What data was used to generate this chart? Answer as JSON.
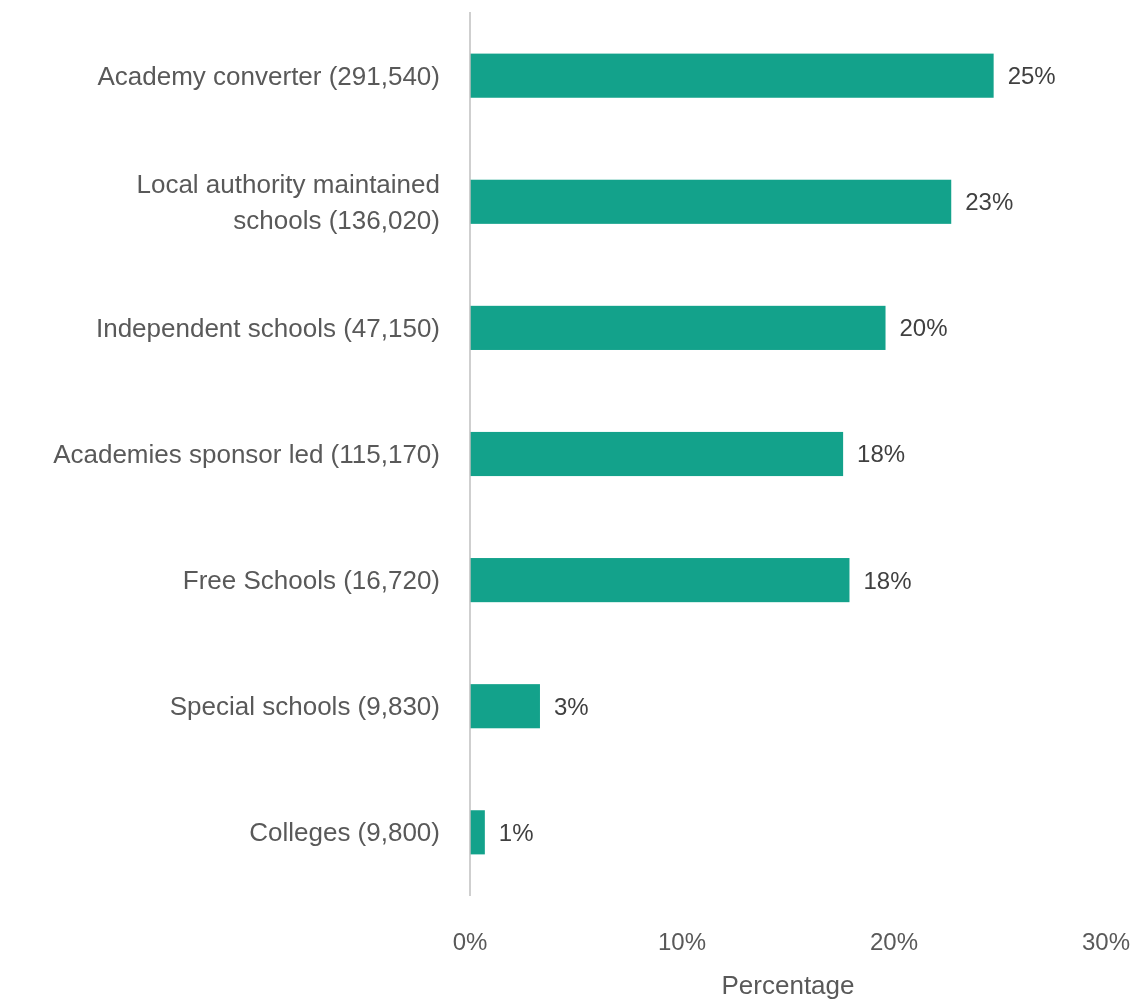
{
  "chart_data": {
    "type": "bar",
    "orientation": "horizontal",
    "xlabel": "Percentage",
    "categories": [
      "Academy converter (291,540)",
      "Local authority maintained schools (136,020)",
      "Independent schools (47,150)",
      "Academies sponsor led (115,170)",
      "Free Schools (16,720)",
      "Special schools (9,830)",
      "Colleges (9,800)"
    ],
    "values": [
      24.7,
      22.7,
      19.6,
      17.6,
      17.9,
      3.3,
      0.7
    ],
    "value_labels": [
      "25%",
      "23%",
      "20%",
      "18%",
      "18%",
      "3%",
      "1%"
    ],
    "color": "#13a28b",
    "xlim": [
      0,
      30
    ],
    "xticks": [
      {
        "value": 0,
        "label": "0%"
      },
      {
        "value": 10,
        "label": "10%"
      },
      {
        "value": 20,
        "label": "20%"
      },
      {
        "value": 30,
        "label": "30%"
      }
    ],
    "grid": false
  }
}
